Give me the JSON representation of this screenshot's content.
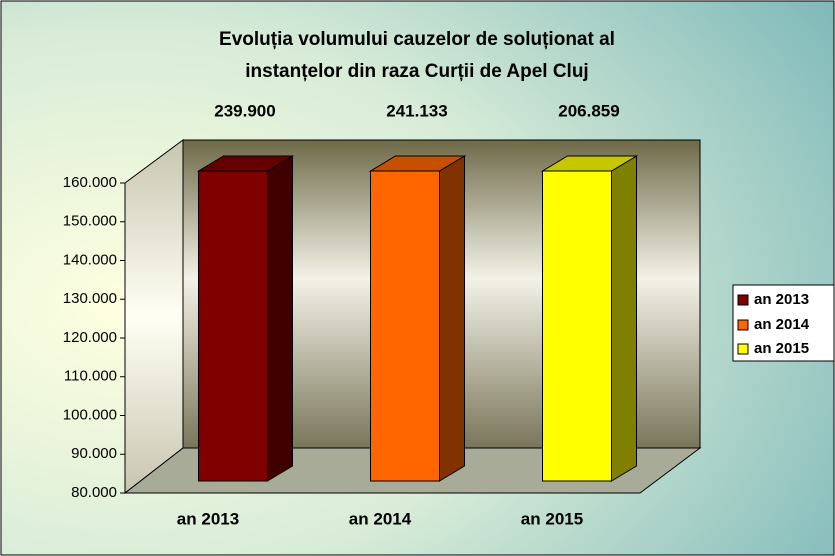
{
  "chart_data": {
    "type": "bar3d",
    "title": "Evoluția volumului cauzelor de soluționat al",
    "subtitle": "instanțelor din raza Curții de Apel Cluj",
    "categories": [
      "an 2013",
      "an 2014",
      "an 2015"
    ],
    "values": [
      239900,
      241133,
      206859
    ],
    "value_labels": [
      "239.900",
      "241.133",
      "206.859"
    ],
    "colors": [
      "#800000",
      "#ff6600",
      "#ffff00"
    ],
    "ylim": [
      80000,
      160000
    ],
    "yticks": [
      {
        "value": 80000,
        "label": "80.000"
      },
      {
        "value": 90000,
        "label": "90.000"
      },
      {
        "value": 100000,
        "label": "100.000"
      },
      {
        "value": 110000,
        "label": "110.000"
      },
      {
        "value": 120000,
        "label": "120.000"
      },
      {
        "value": 130000,
        "label": "130.000"
      },
      {
        "value": 140000,
        "label": "140.000"
      },
      {
        "value": 150000,
        "label": "150.000"
      },
      {
        "value": 160000,
        "label": "160.000"
      }
    ],
    "legend": "right"
  }
}
